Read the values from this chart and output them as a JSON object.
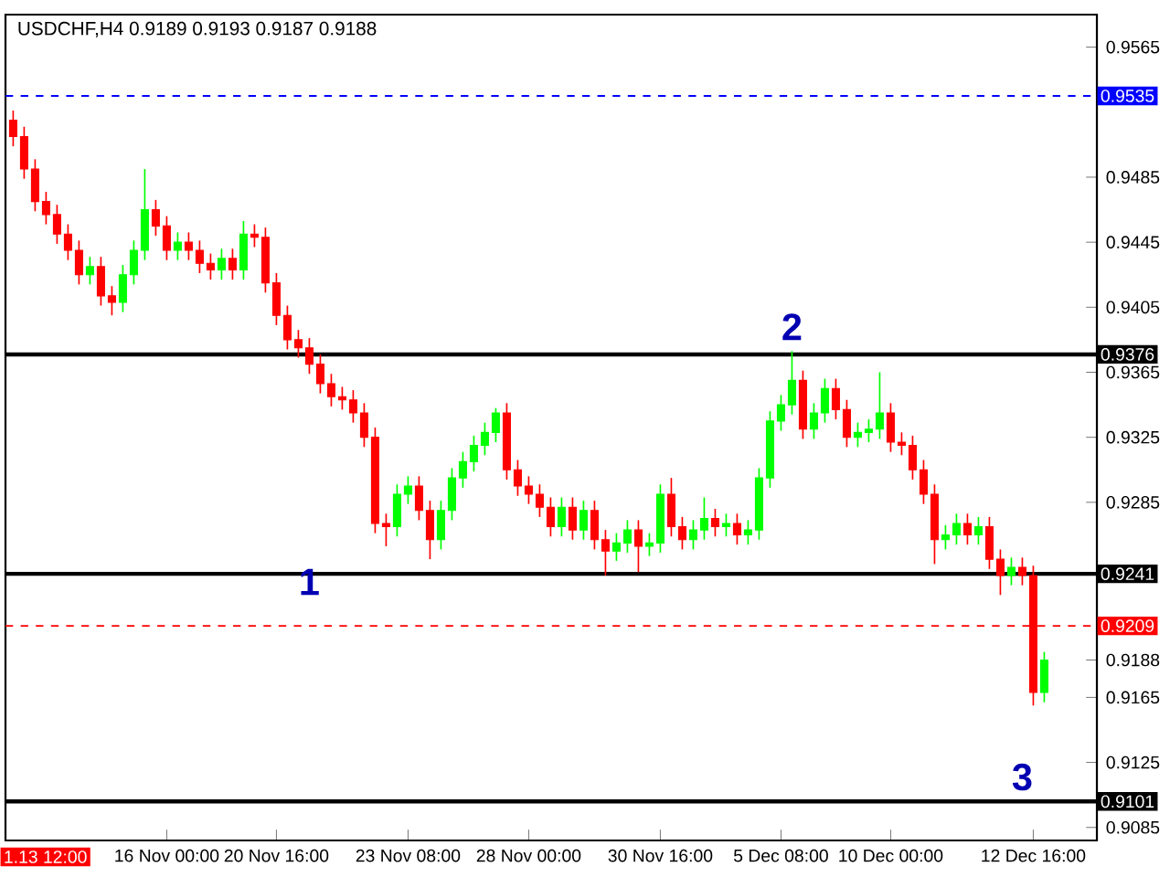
{
  "chart_data": {
    "type": "candlestick",
    "title": "USDCHF,H4  0.9189 0.9193 0.9187 0.9188",
    "categories": [
      null,
      null,
      null,
      null,
      null,
      null,
      null,
      null,
      null,
      null,
      null,
      null,
      null,
      null,
      "16 Nov 00:00",
      null,
      null,
      null,
      null,
      null,
      null,
      null,
      null,
      null,
      "20 Nov 16:00",
      null,
      null,
      null,
      null,
      null,
      null,
      null,
      null,
      null,
      null,
      null,
      "23 Nov 08:00",
      null,
      null,
      null,
      null,
      null,
      null,
      null,
      null,
      null,
      null,
      "28 Nov 00:00",
      null,
      null,
      null,
      null,
      null,
      null,
      null,
      null,
      null,
      null,
      null,
      "30 Nov 16:00",
      null,
      null,
      null,
      null,
      null,
      null,
      null,
      null,
      null,
      null,
      "5 Dec 08:00",
      null,
      null,
      null,
      null,
      null,
      null,
      null,
      null,
      null,
      "10 Dec 00:00",
      null,
      null,
      null,
      null,
      null,
      null,
      null,
      null,
      null,
      null,
      null,
      null,
      "12 Dec 16:00",
      null
    ],
    "ohlc": [
      [
        0.952,
        0.9526,
        0.9504,
        0.951
      ],
      [
        0.951,
        0.9516,
        0.9484,
        0.949
      ],
      [
        0.949,
        0.9496,
        0.9464,
        0.947
      ],
      [
        0.947,
        0.9476,
        0.9456,
        0.9462
      ],
      [
        0.9462,
        0.9468,
        0.9444,
        0.945
      ],
      [
        0.945,
        0.9456,
        0.9434,
        0.944
      ],
      [
        0.944,
        0.9446,
        0.9419,
        0.9425
      ],
      [
        0.9425,
        0.9436,
        0.9419,
        0.943
      ],
      [
        0.943,
        0.9436,
        0.9406,
        0.9412
      ],
      [
        0.9412,
        0.9418,
        0.94,
        0.9408
      ],
      [
        0.9408,
        0.9431,
        0.9402,
        0.9425
      ],
      [
        0.9425,
        0.9446,
        0.9419,
        0.944
      ],
      [
        0.944,
        0.949,
        0.9434,
        0.9465
      ],
      [
        0.9465,
        0.9471,
        0.9449,
        0.9455
      ],
      [
        0.9455,
        0.9461,
        0.9434,
        0.944
      ],
      [
        0.944,
        0.9451,
        0.9434,
        0.9445
      ],
      [
        0.9445,
        0.9451,
        0.9434,
        0.944
      ],
      [
        0.944,
        0.9446,
        0.9426,
        0.9432
      ],
      [
        0.9432,
        0.9438,
        0.9422,
        0.9428
      ],
      [
        0.9428,
        0.9441,
        0.9422,
        0.9435
      ],
      [
        0.9435,
        0.9441,
        0.9422,
        0.9428
      ],
      [
        0.9428,
        0.9458,
        0.9422,
        0.945
      ],
      [
        0.945,
        0.9456,
        0.9442,
        0.9448
      ],
      [
        0.9448,
        0.9454,
        0.9414,
        0.942
      ],
      [
        0.942,
        0.9426,
        0.9394,
        0.94
      ],
      [
        0.94,
        0.9406,
        0.9379,
        0.9385
      ],
      [
        0.9385,
        0.9391,
        0.9374,
        0.938
      ],
      [
        0.938,
        0.9386,
        0.9364,
        0.937
      ],
      [
        0.937,
        0.9376,
        0.9352,
        0.9358
      ],
      [
        0.9358,
        0.9364,
        0.9344,
        0.935
      ],
      [
        0.935,
        0.9356,
        0.9342,
        0.9348
      ],
      [
        0.9348,
        0.9354,
        0.9334,
        0.934
      ],
      [
        0.934,
        0.9346,
        0.9319,
        0.9325
      ],
      [
        0.9325,
        0.9331,
        0.9266,
        0.9272
      ],
      [
        0.9272,
        0.9278,
        0.9258,
        0.927
      ],
      [
        0.927,
        0.9296,
        0.9264,
        0.929
      ],
      [
        0.929,
        0.9301,
        0.9284,
        0.9295
      ],
      [
        0.9295,
        0.9301,
        0.9274,
        0.928
      ],
      [
        0.928,
        0.9286,
        0.925,
        0.9262
      ],
      [
        0.9262,
        0.9286,
        0.9256,
        0.928
      ],
      [
        0.928,
        0.9306,
        0.9274,
        0.93
      ],
      [
        0.93,
        0.9316,
        0.9294,
        0.931
      ],
      [
        0.931,
        0.9326,
        0.9304,
        0.932
      ],
      [
        0.932,
        0.9334,
        0.9314,
        0.9328
      ],
      [
        0.9328,
        0.9343,
        0.9322,
        0.934
      ],
      [
        0.934,
        0.9346,
        0.9299,
        0.9305
      ],
      [
        0.9305,
        0.9311,
        0.9289,
        0.9295
      ],
      [
        0.9295,
        0.9301,
        0.9284,
        0.929
      ],
      [
        0.929,
        0.9296,
        0.9276,
        0.9282
      ],
      [
        0.9282,
        0.9288,
        0.9264,
        0.927
      ],
      [
        0.927,
        0.9288,
        0.9264,
        0.9282
      ],
      [
        0.9282,
        0.9288,
        0.9262,
        0.9268
      ],
      [
        0.9268,
        0.9286,
        0.9262,
        0.928
      ],
      [
        0.928,
        0.9286,
        0.9256,
        0.9262
      ],
      [
        0.9262,
        0.9268,
        0.924,
        0.9255
      ],
      [
        0.9255,
        0.9266,
        0.9249,
        0.926
      ],
      [
        0.926,
        0.9274,
        0.9254,
        0.9268
      ],
      [
        0.9268,
        0.9274,
        0.9242,
        0.9258
      ],
      [
        0.9258,
        0.9266,
        0.9252,
        0.926
      ],
      [
        0.926,
        0.9296,
        0.9254,
        0.929
      ],
      [
        0.929,
        0.93,
        0.9264,
        0.927
      ],
      [
        0.927,
        0.9276,
        0.9256,
        0.9262
      ],
      [
        0.9262,
        0.9274,
        0.9256,
        0.9268
      ],
      [
        0.9268,
        0.9288,
        0.9262,
        0.9275
      ],
      [
        0.9275,
        0.9281,
        0.9264,
        0.927
      ],
      [
        0.927,
        0.9278,
        0.9264,
        0.9272
      ],
      [
        0.9272,
        0.9278,
        0.9259,
        0.9265
      ],
      [
        0.9265,
        0.9274,
        0.9259,
        0.9268
      ],
      [
        0.9268,
        0.9306,
        0.9262,
        0.93
      ],
      [
        0.93,
        0.9341,
        0.9294,
        0.9335
      ],
      [
        0.9335,
        0.9351,
        0.9329,
        0.9345
      ],
      [
        0.9345,
        0.9378,
        0.9339,
        0.936
      ],
      [
        0.936,
        0.9366,
        0.9324,
        0.933
      ],
      [
        0.933,
        0.9346,
        0.9324,
        0.934
      ],
      [
        0.934,
        0.9361,
        0.9334,
        0.9355
      ],
      [
        0.9355,
        0.9361,
        0.9336,
        0.9342
      ],
      [
        0.9342,
        0.9348,
        0.9319,
        0.9325
      ],
      [
        0.9325,
        0.9334,
        0.9319,
        0.9328
      ],
      [
        0.9328,
        0.9336,
        0.9322,
        0.933
      ],
      [
        0.933,
        0.9365,
        0.9324,
        0.934
      ],
      [
        0.934,
        0.9346,
        0.9316,
        0.9322
      ],
      [
        0.9322,
        0.9328,
        0.9314,
        0.932
      ],
      [
        0.932,
        0.9326,
        0.9299,
        0.9305
      ],
      [
        0.9305,
        0.9311,
        0.9284,
        0.929
      ],
      [
        0.929,
        0.9296,
        0.9247,
        0.9262
      ],
      [
        0.9262,
        0.9271,
        0.9256,
        0.9265
      ],
      [
        0.9265,
        0.9278,
        0.9259,
        0.9272
      ],
      [
        0.9272,
        0.9278,
        0.9259,
        0.9265
      ],
      [
        0.9265,
        0.9276,
        0.9259,
        0.927
      ],
      [
        0.927,
        0.9276,
        0.9244,
        0.925
      ],
      [
        0.925,
        0.9256,
        0.9228,
        0.924
      ],
      [
        0.924,
        0.9251,
        0.9234,
        0.9245
      ],
      [
        0.9245,
        0.9251,
        0.9234,
        0.924
      ],
      [
        0.924,
        0.9246,
        0.916,
        0.9168
      ],
      [
        0.9168,
        0.9193,
        0.9162,
        0.9188
      ]
    ],
    "ylim": [
      0.9077,
      0.9585
    ],
    "yticks": [
      0.9085,
      0.9125,
      0.9165,
      {
        "value": 0.9188,
        "label": "0.9188"
      },
      0.9285,
      0.9325,
      0.9365,
      0.9405,
      0.9445,
      0.9485,
      0.9565
    ],
    "ref_lines": [
      {
        "axis": "y",
        "value": 0.9535,
        "label": "0.9535",
        "color": "#0000ff",
        "line_style": "dashed"
      },
      {
        "axis": "y",
        "value": 0.9376,
        "label": "0.9376",
        "color": "#000000"
      },
      {
        "axis": "y",
        "value": 0.9241,
        "label": "0.9241",
        "color": "#000000"
      },
      {
        "axis": "y",
        "value": 0.9209,
        "label": "0.9209",
        "color": "#ff0000",
        "line_style": "dashed"
      },
      {
        "axis": "y",
        "value": 0.9101,
        "label": "0.9101",
        "color": "#000000"
      }
    ],
    "annotations": [
      "1",
      "2",
      "3",
      "1.13 12:00"
    ]
  }
}
